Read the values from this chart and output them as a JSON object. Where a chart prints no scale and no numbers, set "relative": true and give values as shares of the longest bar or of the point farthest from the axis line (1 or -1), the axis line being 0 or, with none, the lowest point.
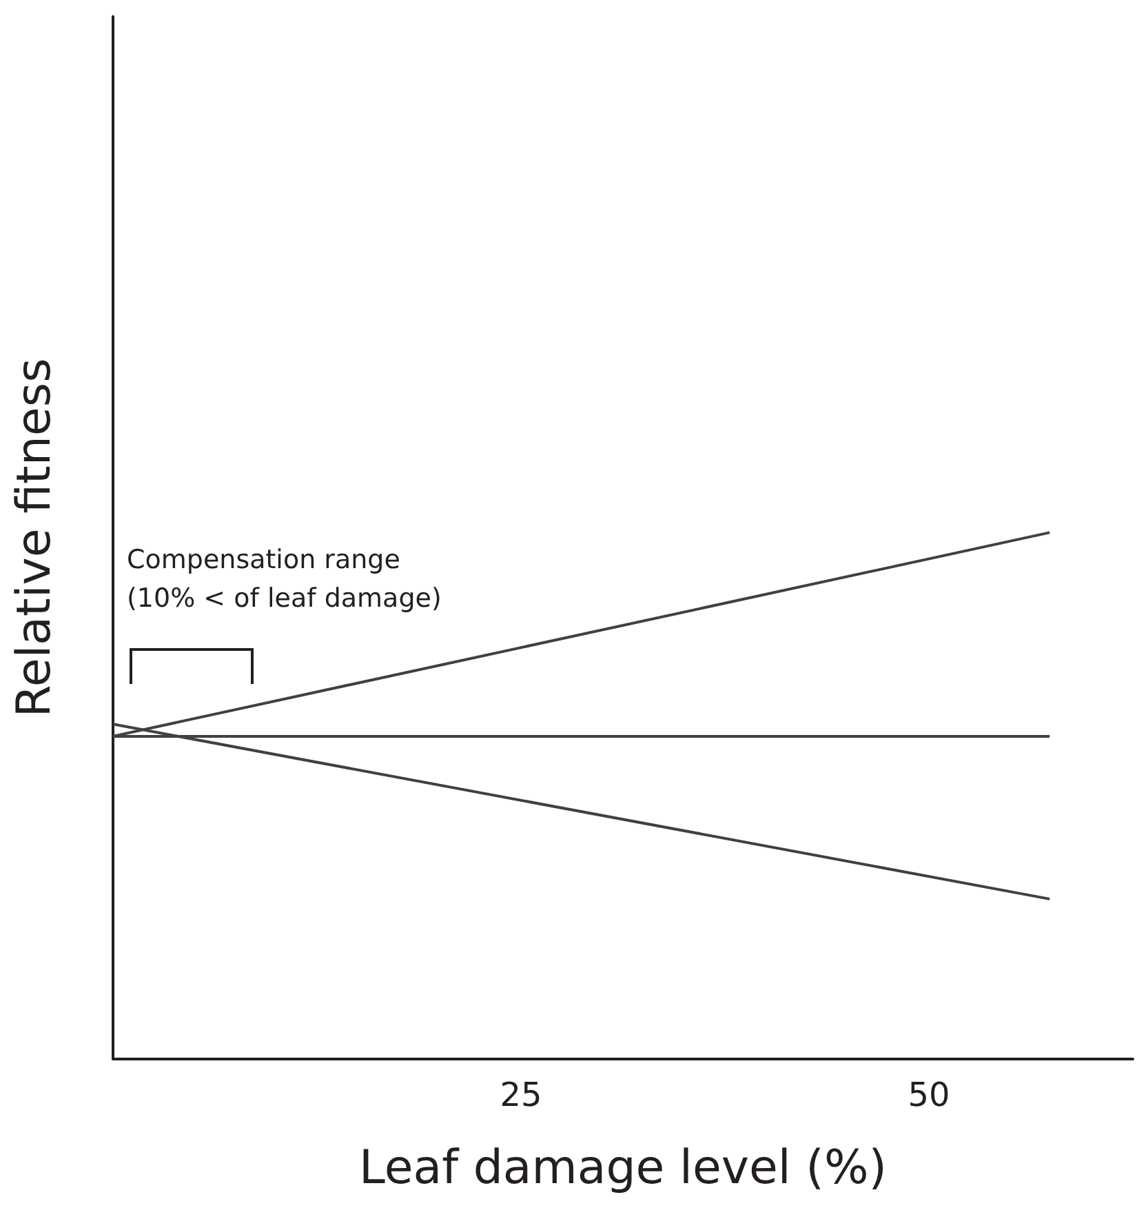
{
  "chart_data": {
    "type": "line",
    "relative": true,
    "xlabel": "Leaf damage level (%)",
    "ylabel": "Relative fitness",
    "x": [
      0,
      57.4
    ],
    "xlim": [
      0,
      62.5
    ],
    "xticks": [
      25,
      50
    ],
    "grid": false,
    "marker": "none",
    "line_style": "solid",
    "series": [
      {
        "color": "#404040",
        "values": [
          0.613,
          1
        ]
      },
      {
        "color": "#404040",
        "values": [
          0.613,
          0.613
        ]
      },
      {
        "color": "#404040",
        "values": [
          0.636,
          0.304
        ]
      }
    ],
    "annotations": [
      "Compensation range\n(10% < of leaf damage)"
    ]
  }
}
